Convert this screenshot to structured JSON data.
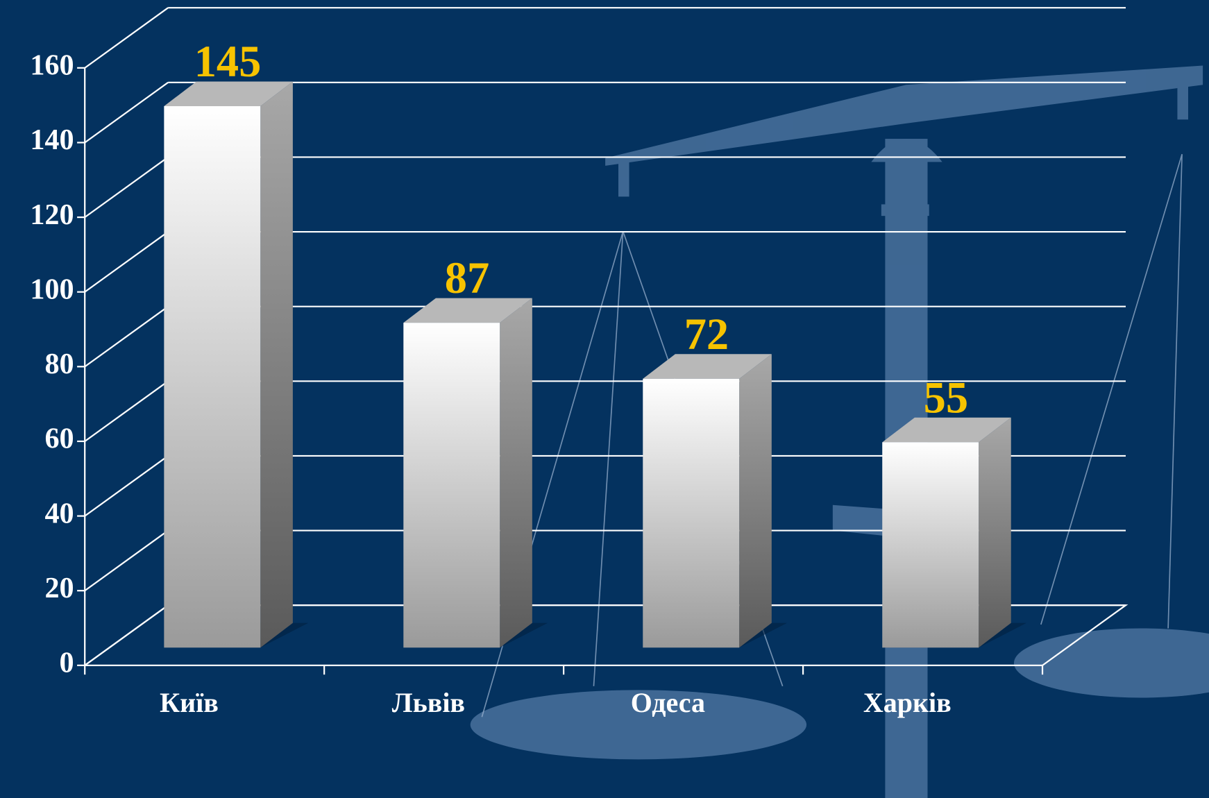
{
  "chart_data": {
    "type": "bar3d",
    "categories": [
      "Київ",
      "Львів",
      "Одеса",
      "Харків"
    ],
    "values": [
      145,
      87,
      72,
      55
    ],
    "ylim": [
      0,
      160
    ],
    "yticks": [
      0,
      20,
      40,
      60,
      80,
      100,
      120,
      140,
      160
    ],
    "grid": true,
    "color": "#e6e6e6",
    "value_label_color": "#f7c300"
  }
}
